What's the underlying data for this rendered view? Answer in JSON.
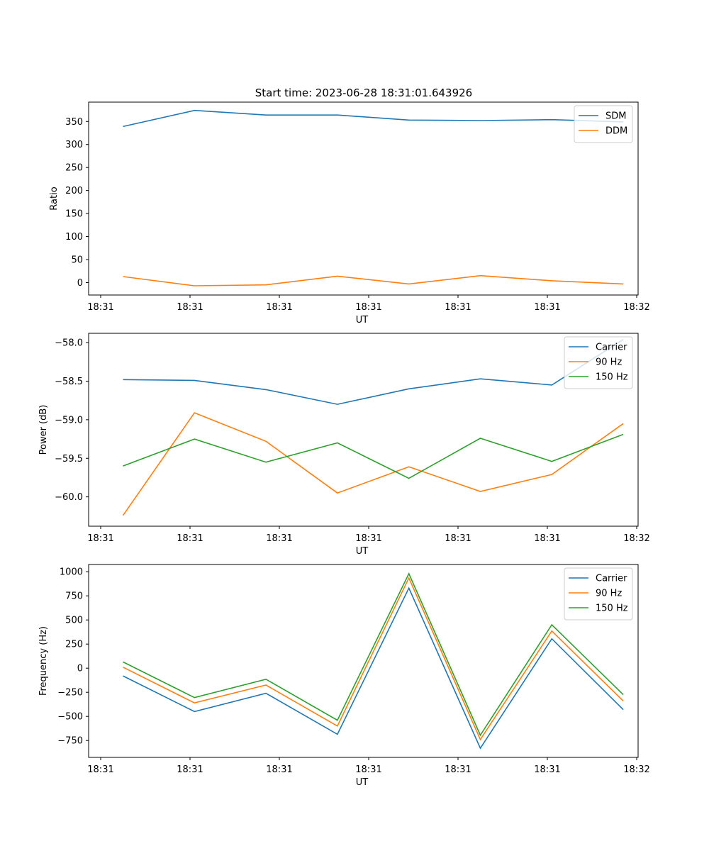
{
  "figure": {
    "title": "Start time: 2023-06-28 18:31:01.643926"
  },
  "chart_data": [
    {
      "type": "line",
      "xlabel": "UT",
      "ylabel": "Ratio",
      "x_tick_labels": [
        "18:31",
        "18:31",
        "18:31",
        "18:31",
        "18:31",
        "18:31",
        "18:32"
      ],
      "ylim": [
        -27,
        392
      ],
      "y_ticks": [
        0,
        50,
        100,
        150,
        200,
        250,
        300,
        350
      ],
      "legend_position": "top-right",
      "grid": false,
      "series": [
        {
          "name": "SDM",
          "color": "#1f77b4",
          "values": [
            339,
            374,
            364,
            364,
            353,
            352,
            354,
            349
          ]
        },
        {
          "name": "DDM",
          "color": "#ff7f0e",
          "values": [
            13,
            -7,
            -5,
            14,
            -3,
            15,
            4,
            -3
          ]
        }
      ]
    },
    {
      "type": "line",
      "xlabel": "UT",
      "ylabel": "Power (dB)",
      "x_tick_labels": [
        "18:31",
        "18:31",
        "18:31",
        "18:31",
        "18:31",
        "18:31",
        "18:32"
      ],
      "ylim": [
        -60.38,
        -57.88
      ],
      "y_ticks": [
        -60.0,
        -59.5,
        -59.0,
        -58.5,
        -58.0
      ],
      "y_tick_labels": [
        "−60.0",
        "−59.5",
        "−59.0",
        "−58.5",
        "−58.0"
      ],
      "legend_position": "top-right",
      "grid": false,
      "series": [
        {
          "name": "Carrier",
          "color": "#1f77b4",
          "values": [
            -58.48,
            -58.49,
            -58.61,
            -58.8,
            -58.6,
            -58.47,
            -58.55,
            -57.96
          ]
        },
        {
          "name": "90 Hz",
          "color": "#ff7f0e",
          "values": [
            -60.24,
            -58.91,
            -59.28,
            -59.95,
            -59.61,
            -59.93,
            -59.71,
            -59.05
          ]
        },
        {
          "name": "150 Hz",
          "color": "#2ca02c",
          "values": [
            -59.6,
            -59.25,
            -59.55,
            -59.3,
            -59.76,
            -59.24,
            -59.54,
            -59.19
          ]
        }
      ]
    },
    {
      "type": "line",
      "xlabel": "UT",
      "ylabel": "Frequency (Hz)",
      "x_tick_labels": [
        "18:31",
        "18:31",
        "18:31",
        "18:31",
        "18:31",
        "18:31",
        "18:32"
      ],
      "ylim": [
        -925,
        1075
      ],
      "y_ticks": [
        -750,
        -500,
        -250,
        0,
        250,
        500,
        750,
        1000
      ],
      "y_tick_labels": [
        "−750",
        "−500",
        "−250",
        "0",
        "250",
        "500",
        "750",
        "1000"
      ],
      "legend_position": "top-right",
      "grid": false,
      "series": [
        {
          "name": "Carrier",
          "color": "#1f77b4",
          "values": [
            -80,
            -450,
            -260,
            -685,
            830,
            -830,
            305,
            -430
          ]
        },
        {
          "name": "90 Hz",
          "color": "#ff7f0e",
          "values": [
            10,
            -360,
            -175,
            -600,
            935,
            -740,
            385,
            -340
          ]
        },
        {
          "name": "150 Hz",
          "color": "#2ca02c",
          "values": [
            65,
            -305,
            -115,
            -540,
            980,
            -695,
            450,
            -275
          ]
        }
      ]
    }
  ]
}
